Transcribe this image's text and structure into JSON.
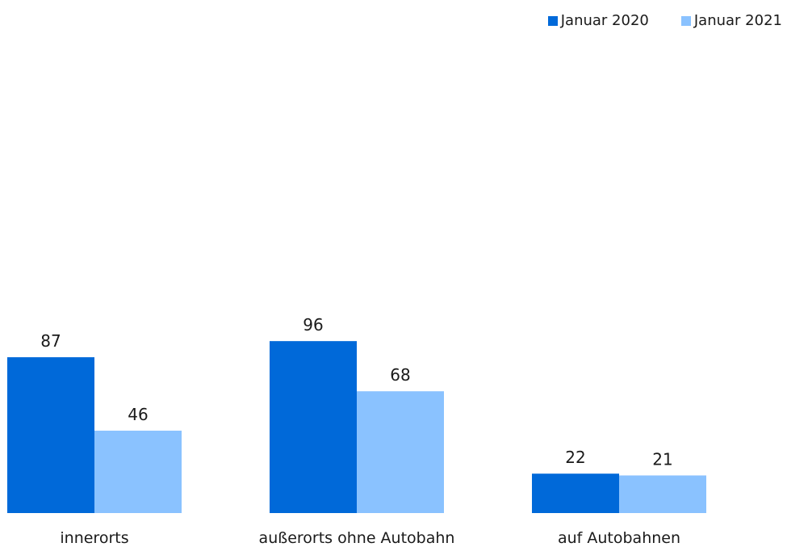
{
  "chart_data": {
    "type": "bar",
    "categories": [
      "innerorts",
      "außerorts ohne Autobahn",
      "auf Autobahnen"
    ],
    "series": [
      {
        "name": "Januar 2020",
        "values": [
          87,
          96,
          22
        ],
        "color": "#0069d9"
      },
      {
        "name": "Januar 2021",
        "values": [
          46,
          68,
          21
        ],
        "color": "#8ac2ff"
      }
    ],
    "title": "",
    "xlabel": "",
    "ylabel": "",
    "ylim": [
      0,
      130
    ],
    "grid": false,
    "legend": "top-right",
    "data_labels": true
  }
}
